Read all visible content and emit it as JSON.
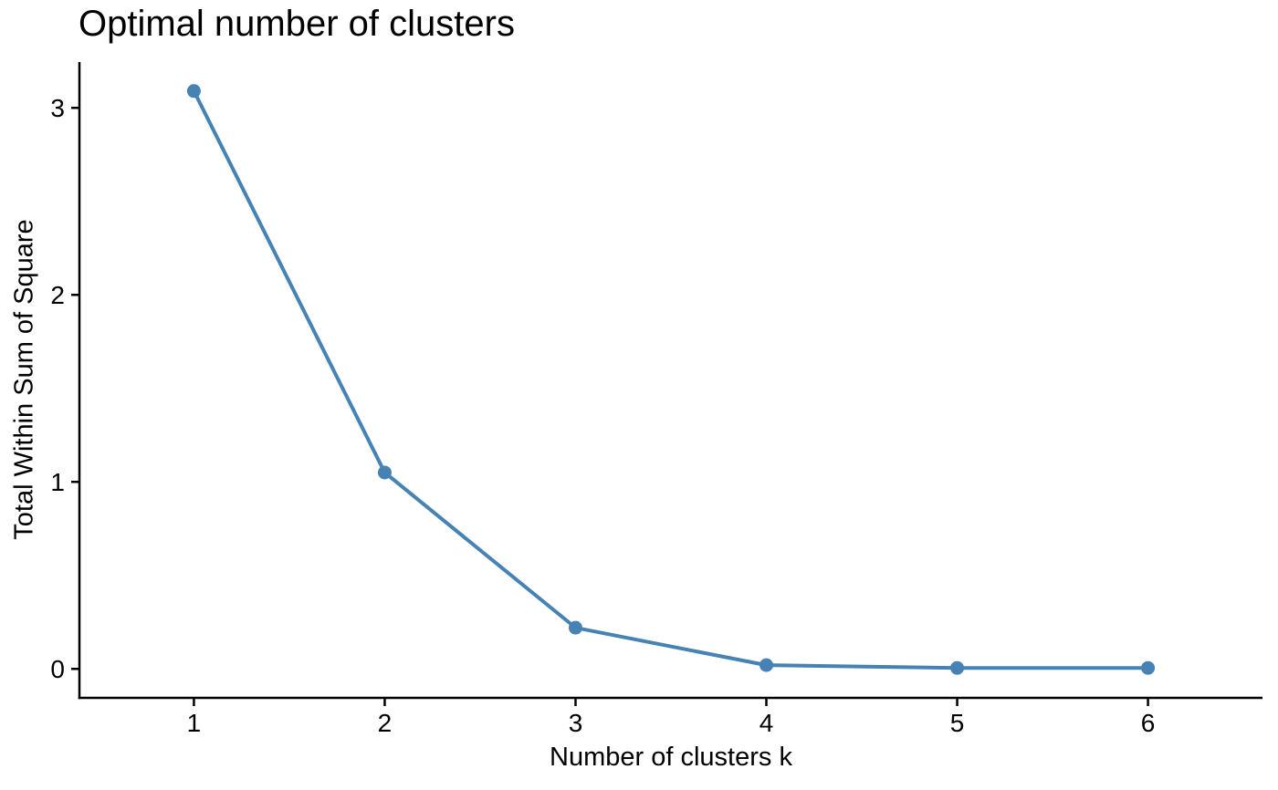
{
  "chart_data": {
    "type": "line",
    "title": "Optimal number of clusters",
    "xlabel": "Number of clusters k",
    "ylabel": "Total Within Sum of Square",
    "x": [
      1,
      2,
      3,
      4,
      5,
      6
    ],
    "values": [
      3.09,
      1.05,
      0.22,
      0.02,
      0.005,
      0.005
    ],
    "x_ticks": [
      "1",
      "2",
      "3",
      "4",
      "5",
      "6"
    ],
    "y_ticks": [
      "0",
      "1",
      "2",
      "3"
    ],
    "y_tick_values": [
      0,
      1,
      2,
      3
    ],
    "xlim": [
      0.4,
      6.6
    ],
    "ylim": [
      -0.155,
      3.245
    ],
    "grid": false,
    "legend": "none",
    "line_color": "#4682B4",
    "point_color": "#4682B4",
    "axis_color": "#000000",
    "text_color": "#000000"
  }
}
